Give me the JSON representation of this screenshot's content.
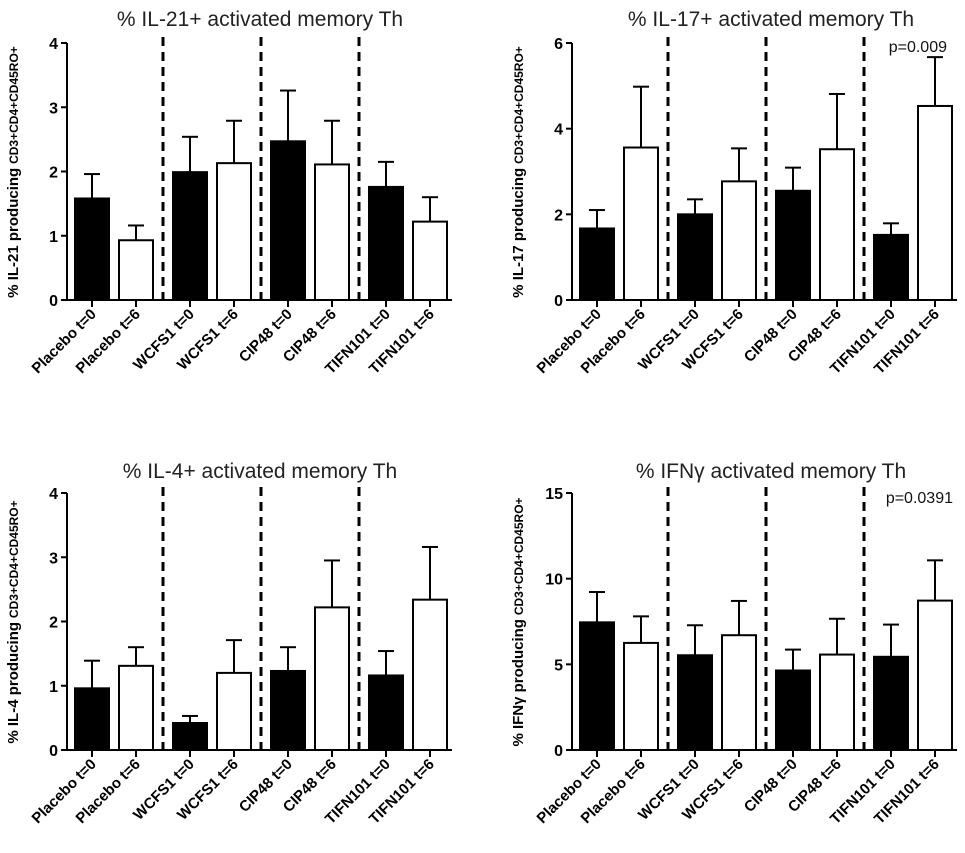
{
  "chart_data": [
    {
      "type": "bar",
      "title": "% IL-21+ activated memory Th",
      "ylabel_main": "% IL-21 producing",
      "ylabel_sub": "CD3+CD4+CD45RO+",
      "ylim": [
        0,
        4
      ],
      "yticks": [
        0,
        1,
        2,
        3,
        4
      ],
      "categories": [
        "Placebo t=0",
        "Placebo t=6",
        "WCFS1 t=0",
        "WCFS1 t=6",
        "CIP48 t=0",
        "CIP48 t=6",
        "TIFN101 t=0",
        "TIFN101 t=6"
      ],
      "values": [
        1.58,
        0.93,
        1.99,
        2.13,
        2.47,
        2.11,
        1.76,
        1.22
      ],
      "errors": [
        0.38,
        0.23,
        0.55,
        0.66,
        0.79,
        0.68,
        0.39,
        0.38
      ],
      "fills": [
        "#000000",
        "#ffffff",
        "#000000",
        "#ffffff",
        "#000000",
        "#ffffff",
        "#000000",
        "#ffffff"
      ],
      "annotation": ""
    },
    {
      "type": "bar",
      "title": "% IL-17+ activated memory Th",
      "ylabel_main": "% IL-17 producing",
      "ylabel_sub": "CD3+CD4+CD45RO+",
      "ylim": [
        0,
        6
      ],
      "yticks": [
        0,
        2,
        4,
        6
      ],
      "categories": [
        "Placebo t=0",
        "Placebo t=6",
        "WCFS1 t=0",
        "WCFS1 t=6",
        "CIP48 t=0",
        "CIP48 t=6",
        "TIFN101 t=0",
        "TIFN101 t=6"
      ],
      "values": [
        1.67,
        3.56,
        2.0,
        2.77,
        2.55,
        3.52,
        1.52,
        4.53
      ],
      "errors": [
        0.43,
        1.42,
        0.35,
        0.77,
        0.54,
        1.29,
        0.27,
        1.14
      ],
      "fills": [
        "#000000",
        "#ffffff",
        "#000000",
        "#ffffff",
        "#000000",
        "#ffffff",
        "#000000",
        "#ffffff"
      ],
      "annotation": "p=0.009"
    },
    {
      "type": "bar",
      "title": "% IL-4+ activated memory Th",
      "ylabel_main": "% IL-4 producing",
      "ylabel_sub": "CD3+CD4+CD45RO+",
      "ylim": [
        0,
        4
      ],
      "yticks": [
        0,
        1,
        2,
        3,
        4
      ],
      "categories": [
        "Placebo t=0",
        "Placebo t=6",
        "WCFS1 t=0",
        "WCFS1 t=6",
        "CIP48 t=0",
        "CIP48 t=6",
        "TIFN101 t=0",
        "TIFN101 t=6"
      ],
      "values": [
        0.96,
        1.31,
        0.42,
        1.2,
        1.23,
        2.22,
        1.16,
        2.34
      ],
      "errors": [
        0.43,
        0.29,
        0.11,
        0.51,
        0.37,
        0.73,
        0.38,
        0.82
      ],
      "fills": [
        "#000000",
        "#ffffff",
        "#000000",
        "#ffffff",
        "#000000",
        "#ffffff",
        "#000000",
        "#ffffff"
      ],
      "annotation": ""
    },
    {
      "type": "bar",
      "title": "% IFNγ activated memory Th",
      "ylabel_main": "% IFNγ  producing",
      "ylabel_sub": "CD3+CD4+CD45RO+",
      "ylim": [
        0,
        15
      ],
      "yticks": [
        0,
        5,
        10,
        15
      ],
      "categories": [
        "Placebo t=0",
        "Placebo t=6",
        "WCFS1 t=0",
        "WCFS1 t=6",
        "CIP48 t=0",
        "CIP48 t=6",
        "TIFN101 t=0",
        "TIFN101 t=6"
      ],
      "values": [
        7.45,
        6.25,
        5.53,
        6.7,
        4.64,
        5.57,
        5.44,
        8.72
      ],
      "errors": [
        1.77,
        1.55,
        1.75,
        2.0,
        1.22,
        2.09,
        1.88,
        2.35
      ],
      "fills": [
        "#000000",
        "#ffffff",
        "#000000",
        "#ffffff",
        "#000000",
        "#ffffff",
        "#000000",
        "#ffffff"
      ],
      "annotation": "p=0.0391"
    }
  ]
}
